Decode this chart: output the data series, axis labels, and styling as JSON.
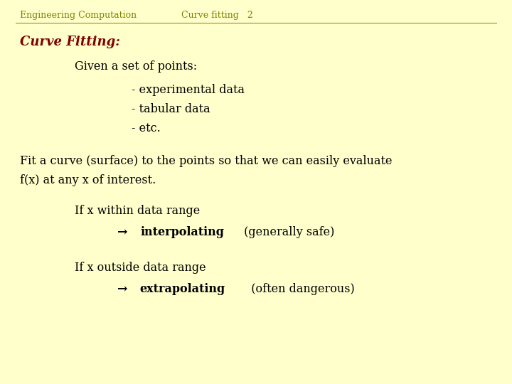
{
  "background_color": "#ffffcc",
  "header_left": "Engineering Computation",
  "header_center": "Curve fitting   2",
  "header_color": "#808000",
  "header_fontsize": 9,
  "title": "Curve Fitting:",
  "title_color": "#800000",
  "title_fontsize": 13,
  "body_color": "#000000",
  "body_fontsize": 11.5,
  "line1": "Given a set of points:",
  "line2": "- experimental data",
  "line3": "- tabular data",
  "line4": "- etc.",
  "para1_l1": "Fit a curve (surface) to the points so that we can easily evaluate",
  "para1_l2": "f(x) at any x of interest.",
  "para2_line1": "If x within data range",
  "para2_arrow": "→ ",
  "para2_bold": "interpolating",
  "para2_normal": " (generally safe)",
  "para3_line1": "If x outside data range",
  "para3_arrow": "→",
  "para3_bold": "extrapolating",
  "para3_normal": "  (often dangerous)"
}
